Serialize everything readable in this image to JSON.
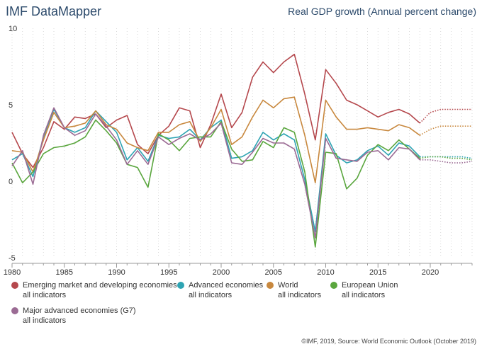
{
  "header": {
    "brand": "IMF DataMapper",
    "title": "Real GDP growth (Annual percent change)"
  },
  "source": "©IMF, 2019, Source: World Economic Outlook (October 2019)",
  "chart_data": {
    "type": "line",
    "title": "Real GDP growth (Annual percent change)",
    "xlim": [
      1980,
      2024
    ],
    "ylim": [
      -5,
      10
    ],
    "x_ticks": [
      "1980",
      "1985",
      "1990",
      "1995",
      "2000",
      "2005",
      "2010",
      "2015",
      "2020"
    ],
    "y_ticks": [
      "10",
      "5",
      "0",
      "-5"
    ],
    "grid": "vertical dotted",
    "legend_position": "bottom",
    "forecast_from": 2019,
    "series": [
      {
        "name": "Emerging market and developing economies",
        "subtitle": "all indicators",
        "color": "#b5484d",
        "values": [
          [
            1980,
            3.2
          ],
          [
            1981,
            1.8
          ],
          [
            1982,
            0.9
          ],
          [
            1983,
            2.2
          ],
          [
            1984,
            3.9
          ],
          [
            1985,
            3.4
          ],
          [
            1986,
            4.2
          ],
          [
            1987,
            4.1
          ],
          [
            1988,
            4.4
          ],
          [
            1989,
            3.5
          ],
          [
            1990,
            4.0
          ],
          [
            1991,
            4.3
          ],
          [
            1992,
            2.4
          ],
          [
            1993,
            1.8
          ],
          [
            1994,
            3.0
          ],
          [
            1995,
            3.6
          ],
          [
            1996,
            4.8
          ],
          [
            1997,
            4.6
          ],
          [
            1998,
            2.2
          ],
          [
            1999,
            3.7
          ],
          [
            2000,
            5.7
          ],
          [
            2001,
            3.5
          ],
          [
            2002,
            4.5
          ],
          [
            2003,
            6.8
          ],
          [
            2004,
            7.8
          ],
          [
            2005,
            7.1
          ],
          [
            2006,
            7.8
          ],
          [
            2007,
            8.3
          ],
          [
            2008,
            5.7
          ],
          [
            2009,
            2.7
          ],
          [
            2010,
            7.3
          ],
          [
            2011,
            6.4
          ],
          [
            2012,
            5.3
          ],
          [
            2013,
            5.0
          ],
          [
            2014,
            4.6
          ],
          [
            2015,
            4.2
          ],
          [
            2016,
            4.5
          ],
          [
            2017,
            4.7
          ],
          [
            2018,
            4.4
          ],
          [
            2019,
            3.8
          ],
          [
            2020,
            4.5
          ],
          [
            2021,
            4.7
          ],
          [
            2022,
            4.7
          ],
          [
            2023,
            4.7
          ],
          [
            2024,
            4.7
          ]
        ]
      },
      {
        "name": "Advanced economies",
        "subtitle": "all indicators",
        "color": "#2ea4b3",
        "values": [
          [
            1980,
            1.4
          ],
          [
            1981,
            1.8
          ],
          [
            1982,
            0.3
          ],
          [
            1983,
            2.9
          ],
          [
            1984,
            4.7
          ],
          [
            1985,
            3.5
          ],
          [
            1986,
            3.2
          ],
          [
            1987,
            3.5
          ],
          [
            1988,
            4.6
          ],
          [
            1989,
            3.9
          ],
          [
            1990,
            3.2
          ],
          [
            1991,
            1.4
          ],
          [
            1992,
            2.2
          ],
          [
            1993,
            1.3
          ],
          [
            1994,
            3.0
          ],
          [
            1995,
            2.8
          ],
          [
            1996,
            2.9
          ],
          [
            1997,
            3.4
          ],
          [
            1998,
            2.7
          ],
          [
            1999,
            3.5
          ],
          [
            2000,
            4.0
          ],
          [
            2001,
            1.5
          ],
          [
            2002,
            1.6
          ],
          [
            2003,
            2.0
          ],
          [
            2004,
            3.2
          ],
          [
            2005,
            2.7
          ],
          [
            2006,
            3.1
          ],
          [
            2007,
            2.7
          ],
          [
            2008,
            0.1
          ],
          [
            2009,
            -3.3
          ],
          [
            2010,
            3.1
          ],
          [
            2011,
            1.7
          ],
          [
            2012,
            1.2
          ],
          [
            2013,
            1.4
          ],
          [
            2014,
            2.0
          ],
          [
            2015,
            2.3
          ],
          [
            2016,
            1.7
          ],
          [
            2017,
            2.5
          ],
          [
            2018,
            2.3
          ],
          [
            2019,
            1.6
          ],
          [
            2020,
            1.6
          ],
          [
            2021,
            1.6
          ],
          [
            2022,
            1.6
          ],
          [
            2023,
            1.6
          ],
          [
            2024,
            1.5
          ]
        ]
      },
      {
        "name": "World",
        "subtitle": "all indicators",
        "color": "#c8883e",
        "values": [
          [
            1980,
            2.0
          ],
          [
            1981,
            1.9
          ],
          [
            1982,
            0.6
          ],
          [
            1983,
            2.7
          ],
          [
            1984,
            4.5
          ],
          [
            1985,
            3.5
          ],
          [
            1986,
            3.6
          ],
          [
            1987,
            3.8
          ],
          [
            1988,
            4.6
          ],
          [
            1989,
            3.7
          ],
          [
            1990,
            3.4
          ],
          [
            1991,
            2.5
          ],
          [
            1992,
            2.2
          ],
          [
            1993,
            2.0
          ],
          [
            1994,
            3.2
          ],
          [
            1995,
            3.2
          ],
          [
            1996,
            3.7
          ],
          [
            1997,
            3.9
          ],
          [
            1998,
            2.6
          ],
          [
            1999,
            3.5
          ],
          [
            2000,
            4.7
          ],
          [
            2001,
            2.4
          ],
          [
            2002,
            2.9
          ],
          [
            2003,
            4.2
          ],
          [
            2004,
            5.3
          ],
          [
            2005,
            4.8
          ],
          [
            2006,
            5.4
          ],
          [
            2007,
            5.5
          ],
          [
            2008,
            3.0
          ],
          [
            2009,
            -0.1
          ],
          [
            2010,
            5.3
          ],
          [
            2011,
            4.2
          ],
          [
            2012,
            3.4
          ],
          [
            2013,
            3.4
          ],
          [
            2014,
            3.5
          ],
          [
            2015,
            3.4
          ],
          [
            2016,
            3.3
          ],
          [
            2017,
            3.7
          ],
          [
            2018,
            3.5
          ],
          [
            2019,
            3.0
          ],
          [
            2020,
            3.4
          ],
          [
            2021,
            3.6
          ],
          [
            2022,
            3.6
          ],
          [
            2023,
            3.6
          ],
          [
            2024,
            3.6
          ]
        ]
      },
      {
        "name": "European Union",
        "subtitle": "all indicators",
        "color": "#5aa63e",
        "values": [
          [
            1980,
            1.2
          ],
          [
            1981,
            -0.1
          ],
          [
            1982,
            0.6
          ],
          [
            1983,
            1.8
          ],
          [
            1984,
            2.2
          ],
          [
            1985,
            2.3
          ],
          [
            1986,
            2.5
          ],
          [
            1987,
            2.9
          ],
          [
            1988,
            4.0
          ],
          [
            1989,
            3.3
          ],
          [
            1990,
            2.5
          ],
          [
            1991,
            1.1
          ],
          [
            1992,
            0.9
          ],
          [
            1993,
            -0.4
          ],
          [
            1994,
            3.1
          ],
          [
            1995,
            2.7
          ],
          [
            1996,
            2.0
          ],
          [
            1997,
            2.8
          ],
          [
            1998,
            2.9
          ],
          [
            1999,
            2.9
          ],
          [
            2000,
            3.9
          ],
          [
            2001,
            2.1
          ],
          [
            2002,
            1.3
          ],
          [
            2003,
            1.4
          ],
          [
            2004,
            2.6
          ],
          [
            2005,
            2.2
          ],
          [
            2006,
            3.5
          ],
          [
            2007,
            3.2
          ],
          [
            2008,
            0.6
          ],
          [
            2009,
            -4.3
          ],
          [
            2010,
            1.9
          ],
          [
            2011,
            1.8
          ],
          [
            2012,
            -0.5
          ],
          [
            2013,
            0.2
          ],
          [
            2014,
            1.7
          ],
          [
            2015,
            2.4
          ],
          [
            2016,
            2.0
          ],
          [
            2017,
            2.7
          ],
          [
            2018,
            2.1
          ],
          [
            2019,
            1.5
          ],
          [
            2020,
            1.6
          ],
          [
            2021,
            1.6
          ],
          [
            2022,
            1.5
          ],
          [
            2023,
            1.5
          ],
          [
            2024,
            1.4
          ]
        ]
      },
      {
        "name": "Major advanced economies (G7)",
        "subtitle": "all indicators",
        "color": "#9b6b94",
        "values": [
          [
            1980,
            1.0
          ],
          [
            1981,
            2.0
          ],
          [
            1982,
            -0.2
          ],
          [
            1983,
            3.0
          ],
          [
            1984,
            4.8
          ],
          [
            1985,
            3.5
          ],
          [
            1986,
            3.0
          ],
          [
            1987,
            3.3
          ],
          [
            1988,
            4.4
          ],
          [
            1989,
            3.6
          ],
          [
            1990,
            2.7
          ],
          [
            1991,
            1.1
          ],
          [
            1992,
            2.0
          ],
          [
            1993,
            1.1
          ],
          [
            1994,
            2.9
          ],
          [
            1995,
            2.4
          ],
          [
            1996,
            2.8
          ],
          [
            1997,
            3.1
          ],
          [
            1998,
            2.7
          ],
          [
            1999,
            3.1
          ],
          [
            2000,
            3.8
          ],
          [
            2001,
            1.2
          ],
          [
            2002,
            1.1
          ],
          [
            2003,
            1.9
          ],
          [
            2004,
            2.8
          ],
          [
            2005,
            2.5
          ],
          [
            2006,
            2.5
          ],
          [
            2007,
            2.1
          ],
          [
            2008,
            -0.2
          ],
          [
            2009,
            -3.7
          ],
          [
            2010,
            2.8
          ],
          [
            2011,
            1.5
          ],
          [
            2012,
            1.4
          ],
          [
            2013,
            1.3
          ],
          [
            2014,
            1.9
          ],
          [
            2015,
            2.0
          ],
          [
            2016,
            1.4
          ],
          [
            2017,
            2.2
          ],
          [
            2018,
            2.1
          ],
          [
            2019,
            1.4
          ],
          [
            2020,
            1.4
          ],
          [
            2021,
            1.3
          ],
          [
            2022,
            1.2
          ],
          [
            2023,
            1.2
          ],
          [
            2024,
            1.3
          ]
        ]
      }
    ]
  }
}
